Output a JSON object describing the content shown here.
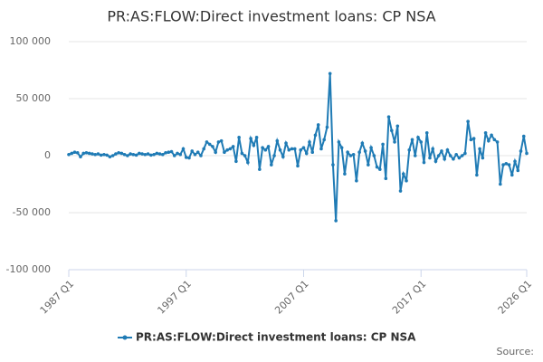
{
  "chart_data": {
    "type": "line",
    "title": "PR:AS:FLOW:Direct investment loans: CP NSA",
    "source": "Source:",
    "categories": [
      "1987 Q1",
      null,
      null,
      null,
      null,
      null,
      null,
      null,
      null,
      null,
      null,
      null,
      null,
      null,
      null,
      null,
      null,
      null,
      null,
      null,
      null,
      null,
      null,
      null,
      null,
      null,
      null,
      null,
      null,
      null,
      null,
      null,
      null,
      null,
      null,
      null,
      null,
      null,
      null,
      null,
      "1997 Q1",
      null,
      null,
      null,
      null,
      null,
      null,
      null,
      null,
      null,
      null,
      null,
      null,
      null,
      null,
      null,
      null,
      null,
      null,
      null,
      null,
      null,
      null,
      null,
      null,
      null,
      null,
      null,
      null,
      null,
      null,
      null,
      null,
      null,
      null,
      null,
      null,
      null,
      null,
      null,
      "2007 Q1",
      null,
      null,
      null,
      null,
      null,
      null,
      null,
      null,
      null,
      null,
      null,
      null,
      null,
      null,
      null,
      null,
      null,
      null,
      null,
      null,
      null,
      null,
      null,
      null,
      null,
      null,
      null,
      null,
      null,
      null,
      null,
      null,
      null,
      null,
      null,
      null,
      null,
      null,
      null,
      "2017 Q1",
      null,
      null,
      null,
      null,
      null,
      null,
      null,
      null,
      null,
      null,
      null,
      null,
      null,
      null,
      null,
      null,
      null,
      null,
      null,
      null,
      null,
      null,
      null,
      null,
      null,
      null,
      null,
      null,
      null,
      null,
      null,
      null,
      null,
      null,
      null,
      "2026 Q1"
    ],
    "series": [
      {
        "name": "PR:AS:FLOW:Direct investment loans: CP NSA",
        "color": "#1f7bb5",
        "values": [
          1000,
          2000,
          3000,
          2500,
          -1000,
          2000,
          2500,
          2000,
          1500,
          1000,
          1500,
          500,
          1000,
          500,
          -1000,
          0,
          1500,
          2500,
          2000,
          1000,
          0,
          1500,
          1000,
          500,
          2000,
          1500,
          1000,
          1500,
          500,
          1000,
          2000,
          1500,
          1000,
          2500,
          3000,
          3500,
          0,
          2000,
          1000,
          6000,
          -1500,
          -2000,
          4000,
          1000,
          3000,
          0,
          6000,
          12000,
          10000,
          8000,
          3000,
          12000,
          13000,
          3000,
          5000,
          6000,
          8000,
          -5000,
          16000,
          2000,
          0,
          -6000,
          15000,
          9000,
          16000,
          -12000,
          7000,
          5000,
          8000,
          -8000,
          0,
          13000,
          5000,
          -1000,
          11000,
          5000,
          6000,
          6000,
          -9000,
          5000,
          7000,
          2000,
          12000,
          3000,
          18000,
          27000,
          6000,
          14000,
          25000,
          72000,
          -8000,
          -57000,
          12000,
          7000,
          -16000,
          3000,
          0,
          1000,
          -22000,
          3000,
          11000,
          4000,
          -8000,
          7000,
          0,
          -10000,
          -12000,
          10000,
          -20000,
          34000,
          22000,
          12000,
          26000,
          -31000,
          -16000,
          -22000,
          5000,
          14000,
          0,
          16000,
          12000,
          -6000,
          20000,
          -2000,
          6000,
          -5000,
          0,
          4000,
          -3000,
          5000,
          0,
          -3000,
          1000,
          -2000,
          0,
          2000,
          30000,
          14000,
          15000,
          -17000,
          6000,
          -2000,
          20000,
          13000,
          18000,
          14000,
          12000,
          -25000,
          -8000,
          -7000,
          -8000,
          -17000,
          -5000,
          -13000,
          4000,
          17000,
          2000
        ]
      }
    ],
    "ylim": [
      -100000,
      100000
    ],
    "yticks": [
      {
        "value": -100000,
        "label": "-100 000"
      },
      {
        "value": -50000,
        "label": "-50 000"
      },
      0,
      {
        "value": 50000,
        "label": "50 000"
      },
      {
        "value": 100000,
        "label": "100 000"
      }
    ],
    "grid": true
  }
}
